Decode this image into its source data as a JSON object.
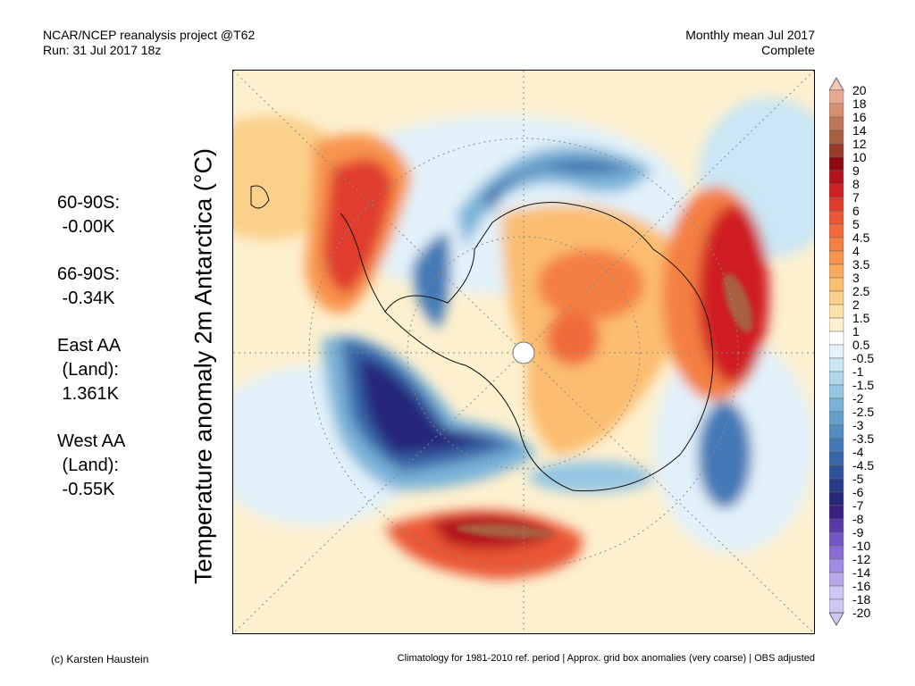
{
  "header": {
    "left_line1": "NCAR/NCEP reanalysis project @T62",
    "left_line2": "Run: 31 Jul 2017 18z",
    "right_line1": "Monthly mean Jul 2017",
    "right_line2": "Complete"
  },
  "stats": [
    {
      "lines": [
        "60-90S:",
        " -0.00K"
      ]
    },
    {
      "lines": [
        "66-90S:",
        " -0.34K"
      ]
    },
    {
      "lines": [
        "East AA",
        " (Land):",
        " 1.361K"
      ]
    },
    {
      "lines": [
        "West AA",
        " (Land):",
        " -0.55K"
      ]
    }
  ],
  "y_axis_label": "Temperature anomaly 2m Antarctica (°C)",
  "colorbar": {
    "labels": [
      "20",
      "18",
      "16",
      "14",
      "12",
      "10",
      "9",
      "8",
      "7",
      "6",
      "5",
      "4.5",
      "4",
      "3.5",
      "3",
      "2.5",
      "2",
      "1.5",
      "1",
      "0.5",
      "-0.5",
      "-1",
      "-1.5",
      "-2",
      "-2.5",
      "-3",
      "-3.5",
      "-4",
      "-4.5",
      "-5",
      "-6",
      "-7",
      "-8",
      "-9",
      "-10",
      "-12",
      "-14",
      "-16",
      "-18",
      "-20"
    ],
    "colors": [
      "#f4c4b4",
      "#e8a88e",
      "#d88f70",
      "#c07658",
      "#a8603f",
      "#9b3a2a",
      "#8c0a0f",
      "#b4111a",
      "#cf1f22",
      "#e03c2e",
      "#ea5634",
      "#f06a3a",
      "#f47f42",
      "#f8944e",
      "#faa85c",
      "#fbbd70",
      "#fbd08a",
      "#fce2a8",
      "#fdf0cf",
      "#ffffff",
      "#e2f1fa",
      "#cbe6f4",
      "#b0d7ec",
      "#95c6e2",
      "#7ab3d8",
      "#65a0cd",
      "#528cc2",
      "#4279b6",
      "#3767a9",
      "#2c5199",
      "#263c8a",
      "#27287a",
      "#3a1e82",
      "#5a38a8",
      "#7456c4",
      "#8a6cd4",
      "#a08ce2",
      "#b7a8ec",
      "#cfc6f4"
    ]
  },
  "map_fields": [
    {
      "kind": "warm-anomaly",
      "level": 3
    },
    {
      "kind": "warm-anomaly",
      "level": 6
    },
    {
      "kind": "warm-anomaly",
      "level": 12
    },
    {
      "kind": "cold-anomaly",
      "level": -4
    },
    {
      "kind": "cold-anomaly",
      "level": -8
    }
  ],
  "footer": {
    "left": "(c) Karsten Haustein",
    "right": "Climatology for 1981-2010 ref. period | Approx. grid box anomalies (very coarse) | OBS adjusted"
  }
}
